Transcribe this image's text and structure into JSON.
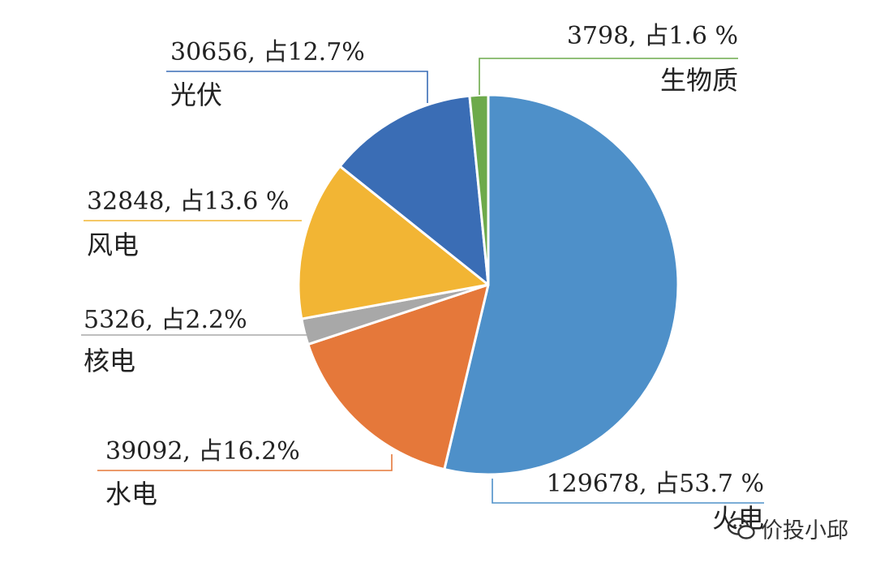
{
  "chart_data": {
    "type": "pie",
    "slices": [
      {
        "name": "火电",
        "value": 129678,
        "percent_label": "129678, 占53.7 %",
        "color": "#4E90C9"
      },
      {
        "name": "水电",
        "value": 39092,
        "percent_label": "39092, 占16.2%",
        "color": "#E5783A"
      },
      {
        "name": "核电",
        "value": 5326,
        "percent_label": "5326, 占2.2%",
        "color": "#A8A8A8"
      },
      {
        "name": "风电",
        "value": 32848,
        "percent_label": "32848, 占13.6 %",
        "color": "#F2B534"
      },
      {
        "name": "光伏",
        "value": 30656,
        "percent_label": "30656, 占12.7%",
        "color": "#3A6DB5"
      },
      {
        "name": "生物质",
        "value": 3798,
        "percent_label": "3798, 占1.6 %",
        "color": "#6DAA4B"
      }
    ]
  },
  "watermark": {
    "text": "价投小邱",
    "icon": "wechat-icon"
  }
}
